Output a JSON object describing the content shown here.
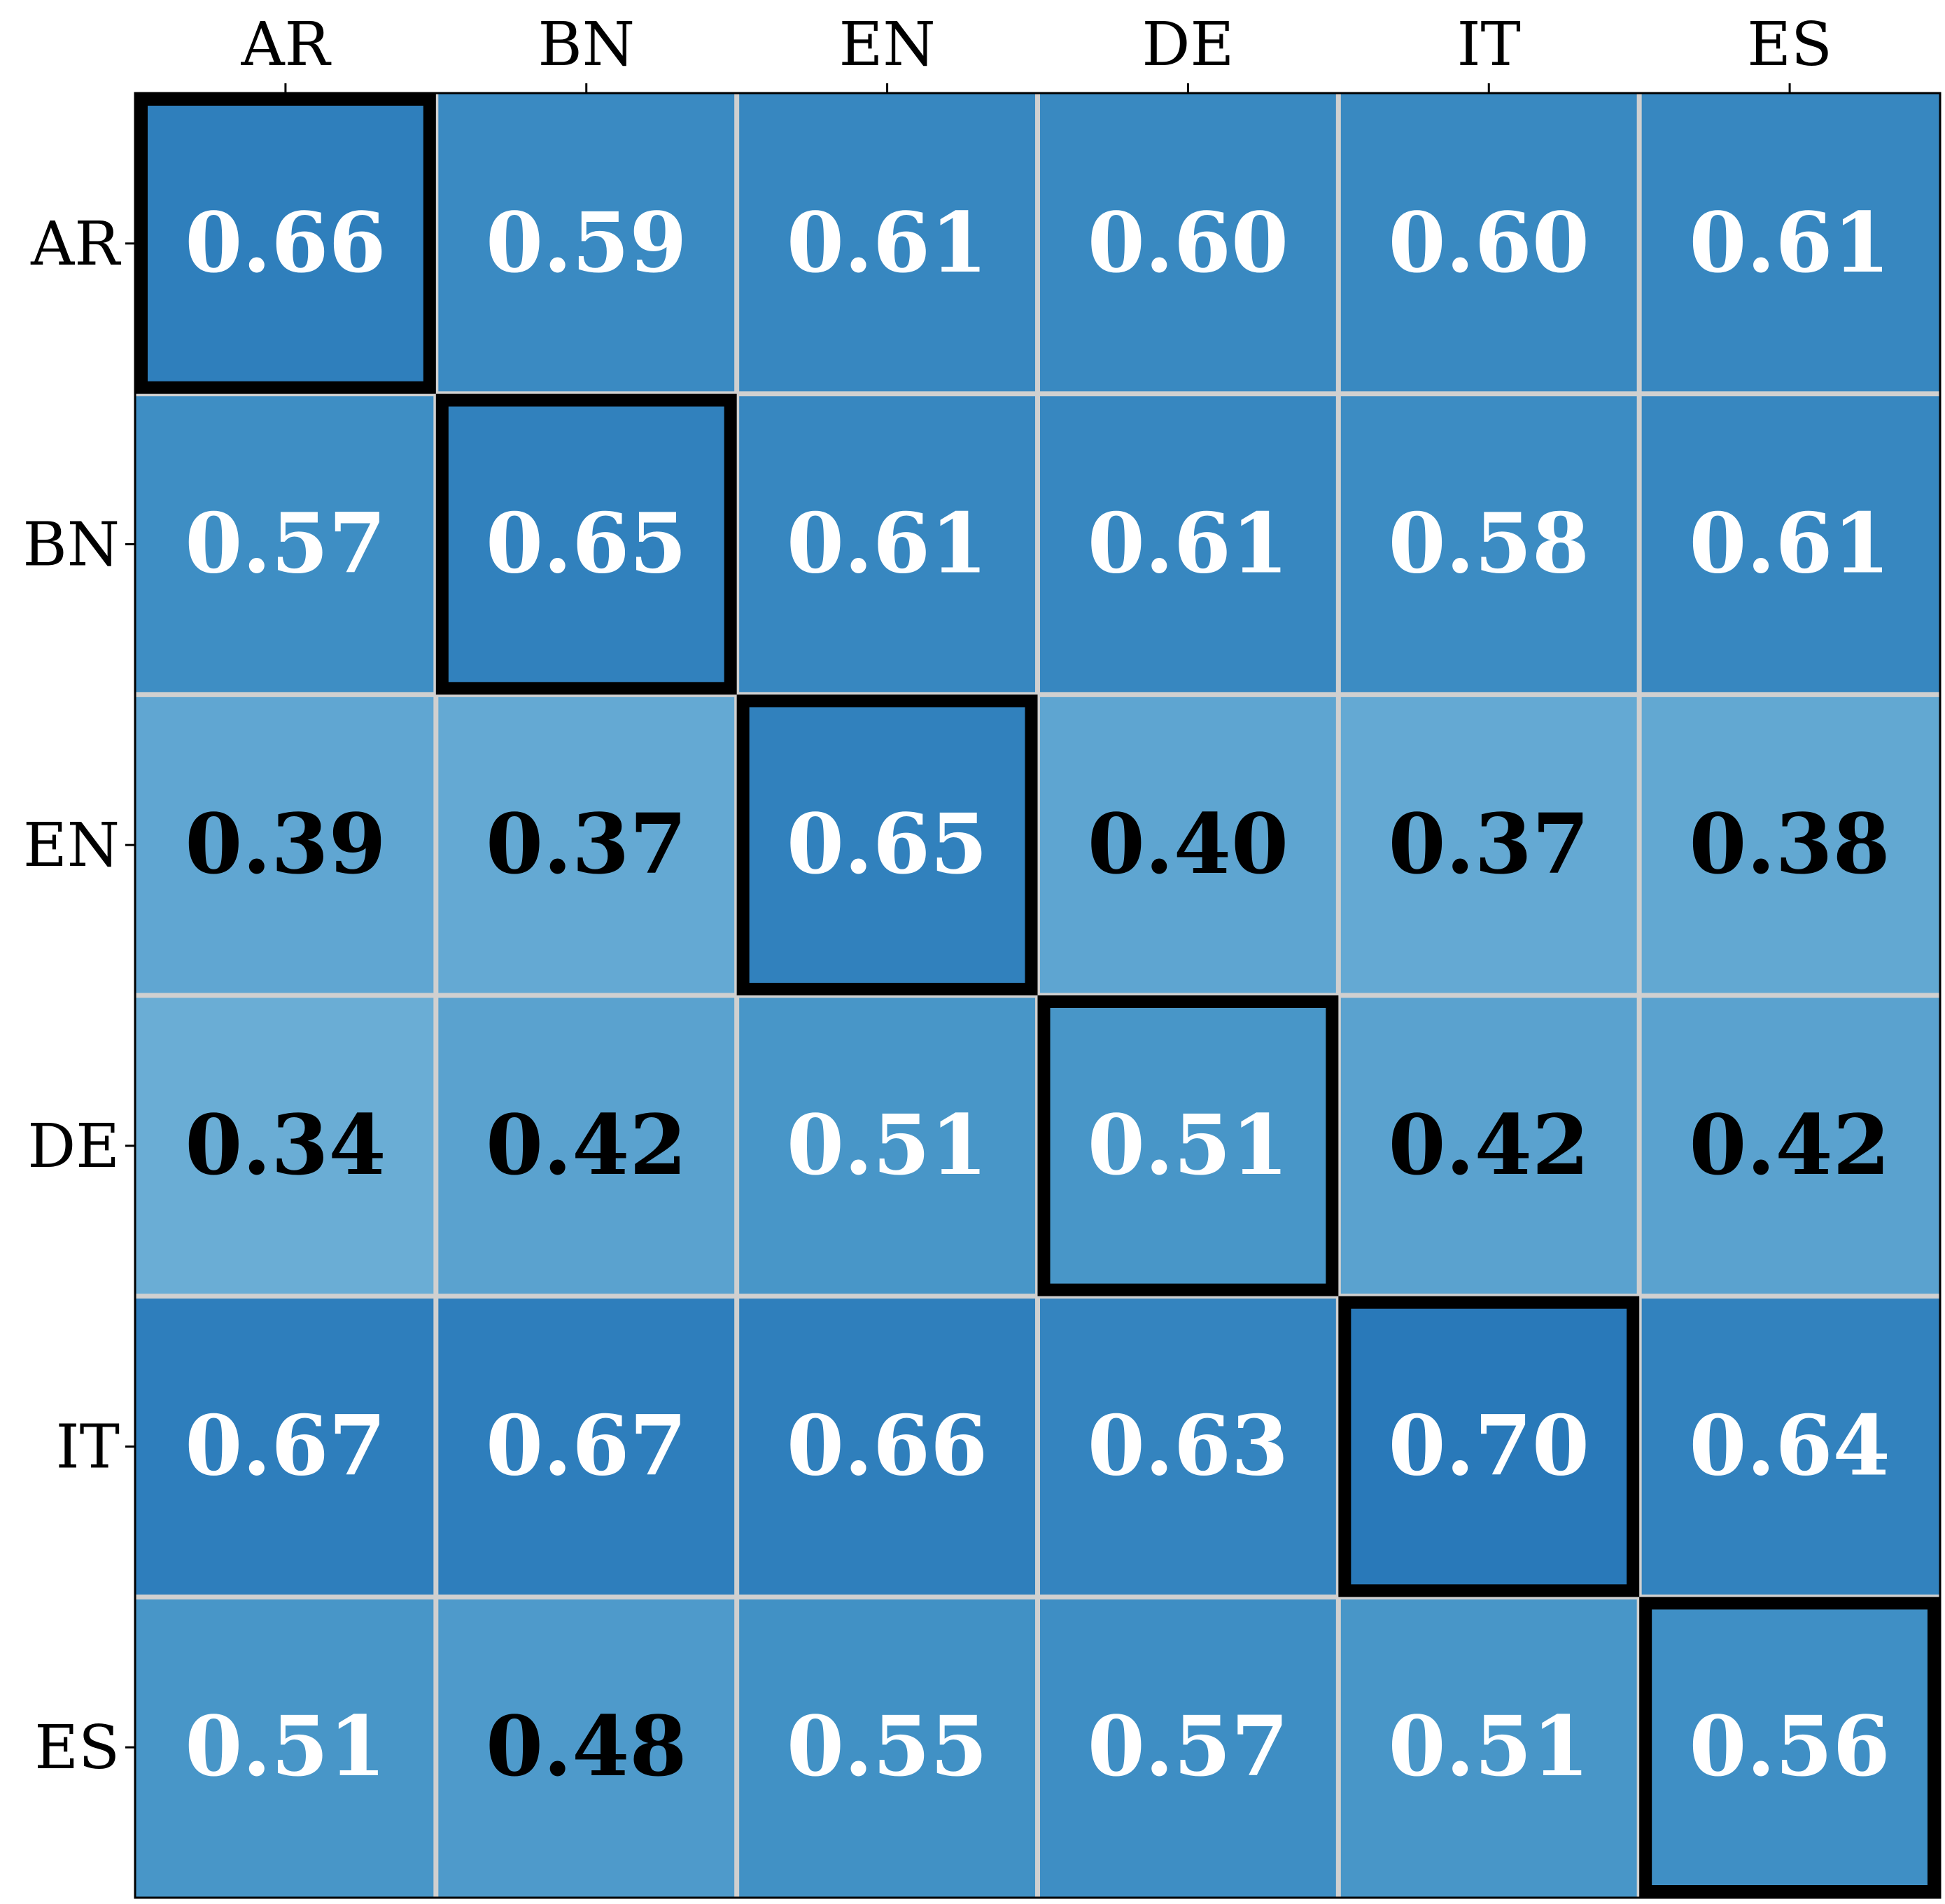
{
  "chart_data": {
    "type": "heatmap",
    "title": "",
    "xlabel": "",
    "ylabel": "",
    "x_categories": [
      "AR",
      "BN",
      "EN",
      "DE",
      "IT",
      "ES"
    ],
    "y_categories": [
      "AR",
      "BN",
      "EN",
      "DE",
      "IT",
      "ES"
    ],
    "x_axis_position": "top",
    "values": [
      [
        0.66,
        0.59,
        0.61,
        0.6,
        0.6,
        0.61
      ],
      [
        0.57,
        0.65,
        0.61,
        0.61,
        0.58,
        0.61
      ],
      [
        0.39,
        0.37,
        0.65,
        0.4,
        0.37,
        0.38
      ],
      [
        0.34,
        0.42,
        0.51,
        0.51,
        0.42,
        0.42
      ],
      [
        0.67,
        0.67,
        0.66,
        0.63,
        0.7,
        0.64
      ],
      [
        0.51,
        0.48,
        0.55,
        0.57,
        0.51,
        0.56
      ]
    ],
    "value_labels": [
      [
        "0.66",
        "0.59",
        "0.61",
        "0.60",
        "0.60",
        "0.61"
      ],
      [
        "0.57",
        "0.65",
        "0.61",
        "0.61",
        "0.58",
        "0.61"
      ],
      [
        "0.39",
        "0.37",
        "0.65",
        "0.40",
        "0.37",
        "0.38"
      ],
      [
        "0.34",
        "0.42",
        "0.51",
        "0.51",
        "0.42",
        "0.42"
      ],
      [
        "0.67",
        "0.67",
        "0.66",
        "0.63",
        "0.70",
        "0.64"
      ],
      [
        "0.51",
        "0.48",
        "0.55",
        "0.57",
        "0.51",
        "0.56"
      ]
    ],
    "colormap": "Blues",
    "color_range": [
      0.0,
      0.7
    ],
    "diagonal_highlight": true,
    "grid": true,
    "legend": "none",
    "colors": {
      "grid": "#d0d0d0",
      "highlight": "#000000",
      "text_dark": "#000000",
      "text_light": "#ffffff",
      "axes": "#000000"
    }
  }
}
